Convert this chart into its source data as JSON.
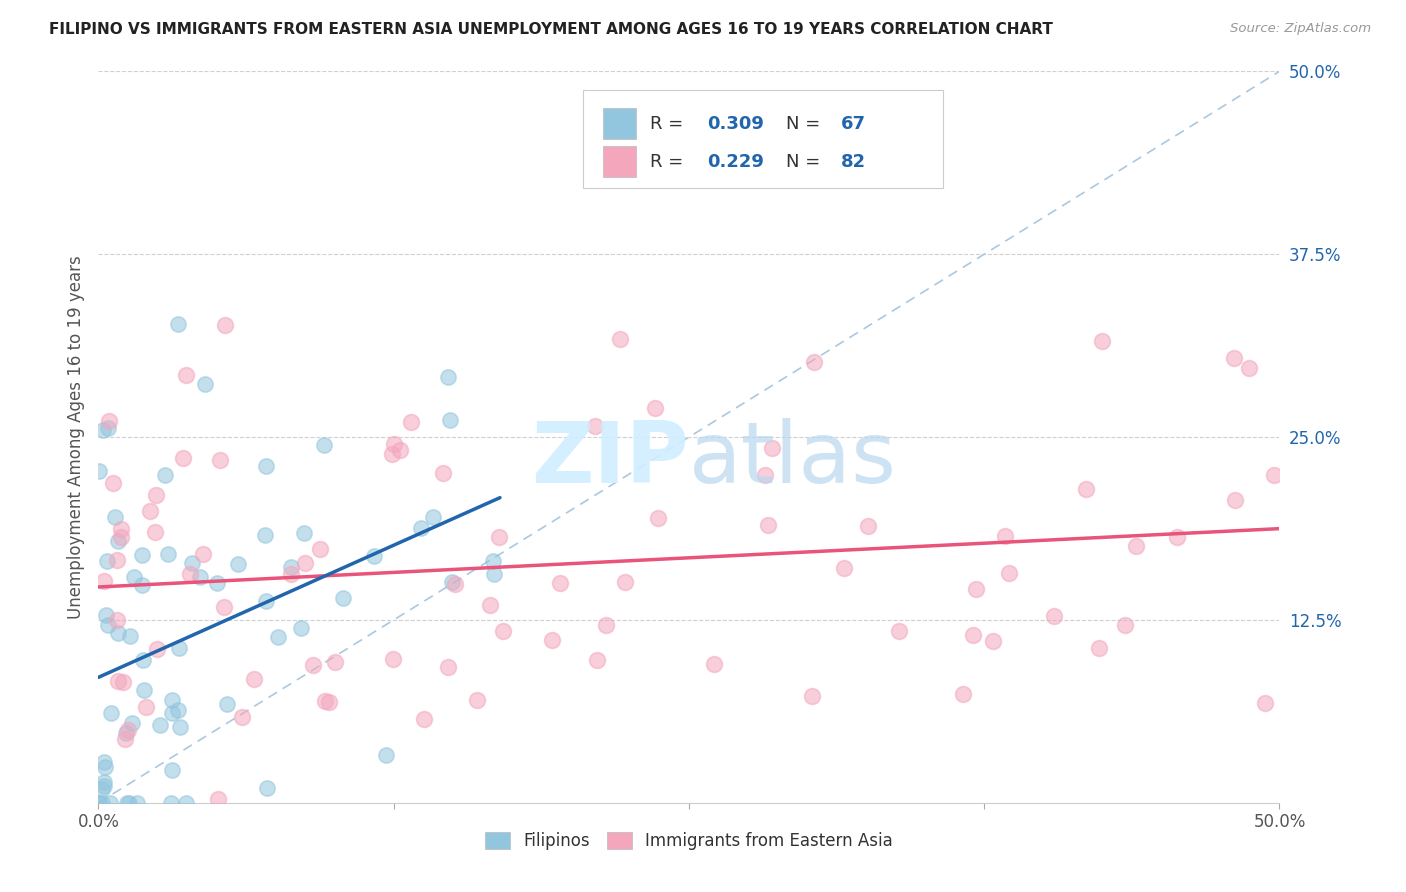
{
  "title": "FILIPINO VS IMMIGRANTS FROM EASTERN ASIA UNEMPLOYMENT AMONG AGES 16 TO 19 YEARS CORRELATION CHART",
  "source": "Source: ZipAtlas.com",
  "ylabel": "Unemployment Among Ages 16 to 19 years",
  "xmin": 0.0,
  "xmax": 0.5,
  "ymin": 0.0,
  "ymax": 0.5,
  "legend_r1": "0.309",
  "legend_n1": "67",
  "legend_r2": "0.229",
  "legend_n2": "82",
  "legend_label1": "Filipinos",
  "legend_label2": "Immigrants from Eastern Asia",
  "color_blue": "#92c5de",
  "color_pink": "#f4a6bd",
  "color_blue_line": "#2166ac",
  "color_pink_line": "#e8547a",
  "color_blue_text": "#2166ac",
  "watermark_color": "#d0eeff",
  "ytick_right_labels": [
    "50.0%",
    "37.5%",
    "25.0%",
    "12.5%",
    ""
  ],
  "ytick_right_values": [
    0.5,
    0.375,
    0.25,
    0.125,
    0.0
  ]
}
